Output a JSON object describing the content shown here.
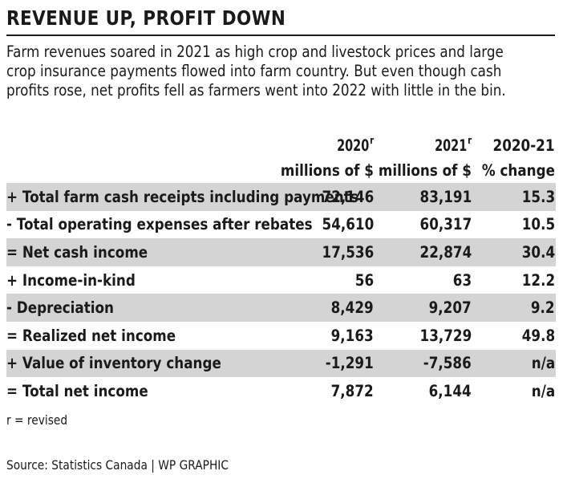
{
  "title": "REVENUE UP, PROFIT DOWN",
  "intro_lines": [
    "Farm revenues soared in 2021 as high crop and livestock prices and large",
    "crop insurance payments flowed into farm country. But even though cash",
    "profits rose, net profits fell as farmers went into 2022 with little in the bin."
  ],
  "header": {
    "col1_year": "2020",
    "col1_sup": "r",
    "col2_year": "2021",
    "col2_sup": "r",
    "col3_top": "2020-21",
    "col1_unit": "millions of $",
    "col2_unit": "millions of $",
    "col3_unit": "% change"
  },
  "rows": [
    {
      "label": "+ Total farm cash receipts including payments",
      "v2020": "72,146",
      "v2021": "83,191",
      "change": "15.3"
    },
    {
      "label": "- Total operating expenses after rebates",
      "v2020": "54,610",
      "v2021": "60,317",
      "change": "10.5"
    },
    {
      "label": "= Net cash income",
      "v2020": "17,536",
      "v2021": "22,874",
      "change": "30.4"
    },
    {
      "label": "+ Income-in-kind",
      "v2020": "56",
      "v2021": "63",
      "change": "12.2"
    },
    {
      "label": "- Depreciation",
      "v2020": "8,429",
      "v2021": "9,207",
      "change": "9.2"
    },
    {
      "label": "= Realized net income",
      "v2020": "9,163",
      "v2021": "13,729",
      "change": "49.8"
    },
    {
      "label": "+ Value of inventory change",
      "v2020": "-1,291",
      "v2021": "-7,586",
      "change": "n/a"
    },
    {
      "label": "= Total net income",
      "v2020": "7,872",
      "v2021": "6,144",
      "change": "n/a"
    }
  ],
  "footnote": "r = revised",
  "source": "Source: Statistics Canada  |  WP GRAPHIC",
  "colors": {
    "shade": "#d4d4d4",
    "text": "#1a1a1a"
  }
}
